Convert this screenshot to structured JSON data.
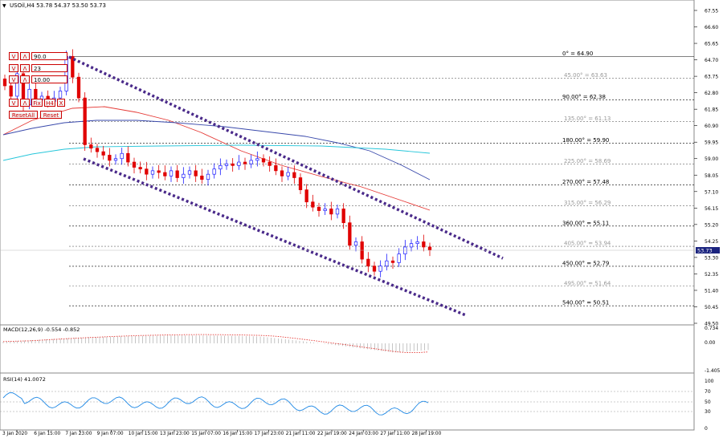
{
  "header": {
    "symbol_line": "USOil,H4  53.78 54.37 53.50 53.73",
    "dropdown_glyph": "▼"
  },
  "price_axis": {
    "ticks": [
      "67.55",
      "66.60",
      "65.65",
      "64.70",
      "63.75",
      "62.80",
      "61.85",
      "60.90",
      "59.95",
      "59.00",
      "58.05",
      "57.10",
      "56.15",
      "55.20",
      "54.25",
      "53.30",
      "52.35",
      "51.40",
      "50.45",
      "49.50"
    ],
    "current_price": "53.73",
    "current_price_color": "#1a237e"
  },
  "time_axis": {
    "labels": [
      "3 Jan 2020",
      "6 Jan 15:00",
      "7 Jan 23:00",
      "9 Jan 07:00",
      "10 Jan 15:00",
      "13 Jan 23:00",
      "15 Jan 07:00",
      "16 Jan 15:00",
      "17 Jan 23:00",
      "21 Jan 11:00",
      "22 Jan 19:00",
      "24 Jan 03:00",
      "27 Jan 11:00",
      "28 Jan 19:00"
    ]
  },
  "gann_levels": [
    {
      "label": "0° = 64.90",
      "price": 64.9,
      "strong": true
    },
    {
      "label": "45.00° = 63.63",
      "price": 63.63,
      "strong": false
    },
    {
      "label": "90.00° = 62.38",
      "price": 62.38,
      "strong": true
    },
    {
      "label": "135.00° = 61.13",
      "price": 61.13,
      "strong": false
    },
    {
      "label": "180.00° = 59.90",
      "price": 59.9,
      "strong": true
    },
    {
      "label": "225.00° = 58.69",
      "price": 58.69,
      "strong": false
    },
    {
      "label": "270.00° = 57.48",
      "price": 57.48,
      "strong": true
    },
    {
      "label": "315.00° = 56.29",
      "price": 56.29,
      "strong": false
    },
    {
      "label": "360.00° = 55.11",
      "price": 55.11,
      "strong": true
    },
    {
      "label": "405.00° = 53.94",
      "price": 53.94,
      "strong": false
    },
    {
      "label": "450.00° = 52.79",
      "price": 52.79,
      "strong": true
    },
    {
      "label": "495.00° = 51.64",
      "price": 51.64,
      "strong": false
    },
    {
      "label": "540.00° = 50.51",
      "price": 50.51,
      "strong": true
    }
  ],
  "controls": {
    "row1": {
      "v": "V",
      "a": "Λ",
      "value": "90.0"
    },
    "row2": {
      "v": "V",
      "a": "Λ",
      "value": "23"
    },
    "row3": {
      "v": "V",
      "a": "Λ",
      "value": "10.00"
    },
    "row4": {
      "v": "V",
      "a": "Λ",
      "fix": "Fix",
      "tf": "H4",
      "x": "X"
    },
    "reset_all": "ResetAll",
    "reset": "Reset"
  },
  "macd": {
    "title": "MACD(12,26,9) -0.554 -0.852",
    "ticks": [
      "0.734",
      "0.00",
      "-1.405"
    ]
  },
  "rsi": {
    "title": "RSI(14) 41.0072",
    "ticks": [
      "100",
      "70",
      "50",
      "30",
      "0"
    ]
  },
  "colors": {
    "bull": "#1a1aff",
    "bear": "#e00000",
    "ma_red": "#e53935",
    "ma_blue": "#3949ab",
    "ma_cyan": "#26c6da",
    "channel": "#4a2a8a",
    "rsi_line": "#1e88e5",
    "macd_signal": "#e53935"
  },
  "chart_data": {
    "type": "candlestick",
    "title": "USOil,H4",
    "ohlc_last": {
      "open": 53.78,
      "high": 54.37,
      "low": 53.5,
      "close": 53.73
    },
    "closes": [
      63.2,
      62.6,
      63.9,
      62.1,
      63.0,
      62.4,
      62.6,
      62.3,
      62.5,
      62.9,
      64.9,
      63.7,
      62.5,
      59.8,
      59.6,
      59.4,
      59.2,
      58.9,
      59.0,
      59.3,
      58.8,
      58.5,
      58.4,
      58.1,
      58.3,
      58.2,
      58.0,
      58.3,
      57.9,
      58.1,
      58.3,
      58.0,
      57.8,
      58.1,
      58.4,
      58.6,
      58.7,
      58.6,
      58.8,
      58.7,
      58.9,
      59.0,
      58.8,
      58.6,
      58.3,
      58.0,
      58.2,
      57.9,
      57.2,
      56.5,
      56.2,
      56.0,
      56.1,
      55.8,
      56.1,
      55.3,
      54.0,
      54.2,
      53.2,
      52.8,
      52.5,
      52.8,
      53.1,
      53.0,
      53.5,
      53.9,
      54.1,
      54.2,
      53.9,
      53.73
    ],
    "ylim": [
      49.5,
      68.0
    ]
  }
}
